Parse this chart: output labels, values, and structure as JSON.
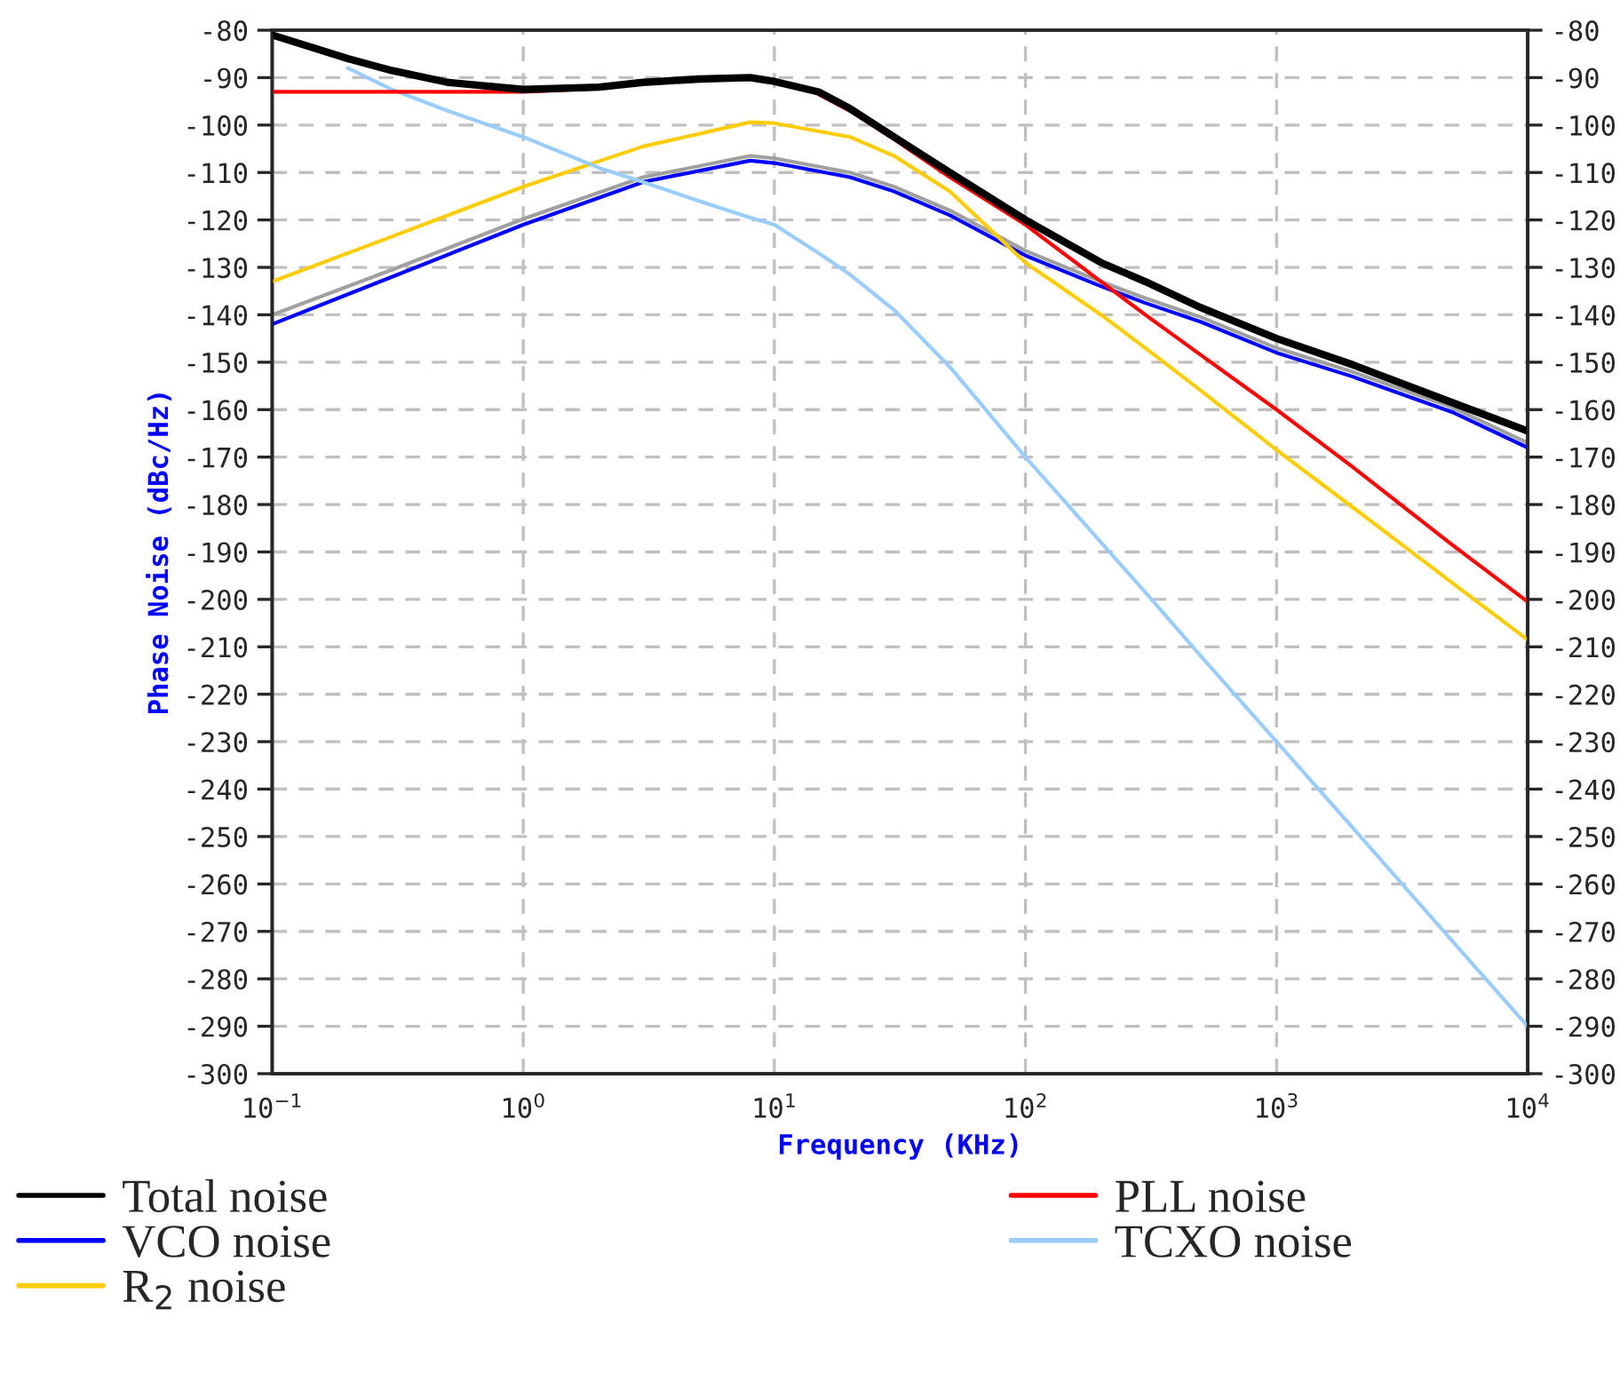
{
  "chart_data": {
    "type": "line",
    "xlabel": "Frequency (KHz)",
    "ylabel": "Phase Noise (dBc/Hz)",
    "log": "x",
    "grid": true,
    "legend": "bottom",
    "line_style": "solid",
    "marker": "none",
    "xlim": [
      0.1,
      10000
    ],
    "xticks": [
      {
        "value": 0.1,
        "label": "10$^{−1}$"
      },
      {
        "value": 1,
        "label": "10$^{0}$"
      },
      {
        "value": 10,
        "label": "10$^{1}$"
      },
      {
        "value": 100,
        "label": "10$^{2}$"
      },
      {
        "value": 1000,
        "label": "10$^{3}$"
      },
      {
        "value": 10000,
        "label": "10$^{4}$"
      }
    ],
    "ylim": [
      -300,
      -80
    ],
    "yticks": [
      -300,
      -290,
      -280,
      -270,
      -260,
      -250,
      -240,
      -230,
      -220,
      -210,
      -200,
      -190,
      -180,
      -170,
      -160,
      -150,
      -140,
      -130,
      -120,
      -110,
      -100,
      -90,
      -80
    ],
    "y2lim": [
      -300,
      -80
    ],
    "y2ticks": [
      -300,
      -290,
      -280,
      -270,
      -260,
      -250,
      -240,
      -230,
      -220,
      -210,
      -200,
      -190,
      -180,
      -170,
      -160,
      -150,
      -140,
      -130,
      -120,
      -110,
      -100,
      -90,
      -80
    ],
    "series": [
      {
        "color": "#a0a0a0",
        "x": [
          0.1,
          0.3,
          1,
          3,
          8,
          10,
          20,
          30,
          50,
          100,
          200,
          300,
          500,
          1000,
          2000,
          5000,
          10000
        ],
        "values": [
          -140,
          -130.5,
          -119.8,
          -111,
          -106.5,
          -107,
          -110,
          -113,
          -118,
          -126.5,
          -133,
          -136.5,
          -140.5,
          -147,
          -152,
          -159.5,
          -167
        ]
      },
      {
        "name": "VCO noise",
        "color": "#0000ff",
        "x": [
          0.1,
          0.3,
          1,
          3,
          8,
          10,
          20,
          30,
          50,
          100,
          200,
          300,
          500,
          1000,
          2000,
          5000,
          10000
        ],
        "values": [
          -142,
          -132,
          -121,
          -112,
          -107.5,
          -108,
          -111,
          -114,
          -119,
          -127.5,
          -134,
          -137.5,
          -141.5,
          -148,
          -153,
          -160.5,
          -168
        ]
      },
      {
        "name": "R$_{2}$ noise",
        "color": "#ffcc00",
        "x": [
          0.1,
          0.3,
          1,
          3,
          8,
          10,
          20,
          30,
          50,
          100,
          200,
          300,
          500,
          1000,
          2000,
          5000,
          10000
        ],
        "values": [
          -133,
          -123.5,
          -113,
          -104.5,
          -99.4,
          -99.6,
          -102.5,
          -106.5,
          -114,
          -129,
          -140,
          -147,
          -156,
          -168.5,
          -180.5,
          -196.5,
          -208.5
        ]
      },
      {
        "name": "TCXO noise",
        "color": "#99ccff",
        "x": [
          0.2,
          0.3,
          0.5,
          1,
          2,
          3,
          5,
          8,
          10,
          15,
          20,
          30,
          50,
          100,
          200,
          300,
          500,
          1000,
          2000,
          5000,
          10000
        ],
        "values": [
          -88,
          -92.5,
          -97,
          -102.5,
          -109,
          -112,
          -116,
          -119.5,
          -121,
          -127,
          -131.5,
          -139,
          -151,
          -170,
          -188,
          -198.5,
          -212,
          -230,
          -248,
          -272,
          -290
        ]
      },
      {
        "name": "PLL noise",
        "color": "#ff0000",
        "x": [
          0.1,
          0.2,
          0.5,
          0.7,
          1,
          2,
          3,
          5,
          8,
          10,
          15,
          20,
          30,
          50,
          100,
          200,
          300,
          500,
          1000,
          2000,
          5000,
          10000
        ],
        "values": [
          -93,
          -93,
          -93,
          -93,
          -93,
          -92.3,
          null,
          null,
          null,
          null,
          -93.5,
          -97,
          -103,
          -111,
          -121,
          -133,
          -140,
          -148.5,
          -160,
          -172,
          -188.5,
          -200.5
        ]
      },
      {
        "name": "Total noise",
        "color": "#000000",
        "x": [
          0.1,
          0.2,
          0.3,
          0.5,
          1,
          2,
          3,
          5,
          8,
          10,
          15,
          20,
          30,
          50,
          100,
          200,
          300,
          500,
          1000,
          2000,
          5000,
          10000
        ],
        "values": [
          -81,
          -86,
          -88.5,
          -91,
          -92.5,
          -92,
          -91,
          -90.3,
          -90,
          -90.8,
          -93,
          -96.5,
          -102.5,
          -110,
          -120,
          -129,
          -133,
          -138.5,
          -145,
          -150.5,
          -158.5,
          -164.5
        ]
      }
    ]
  }
}
